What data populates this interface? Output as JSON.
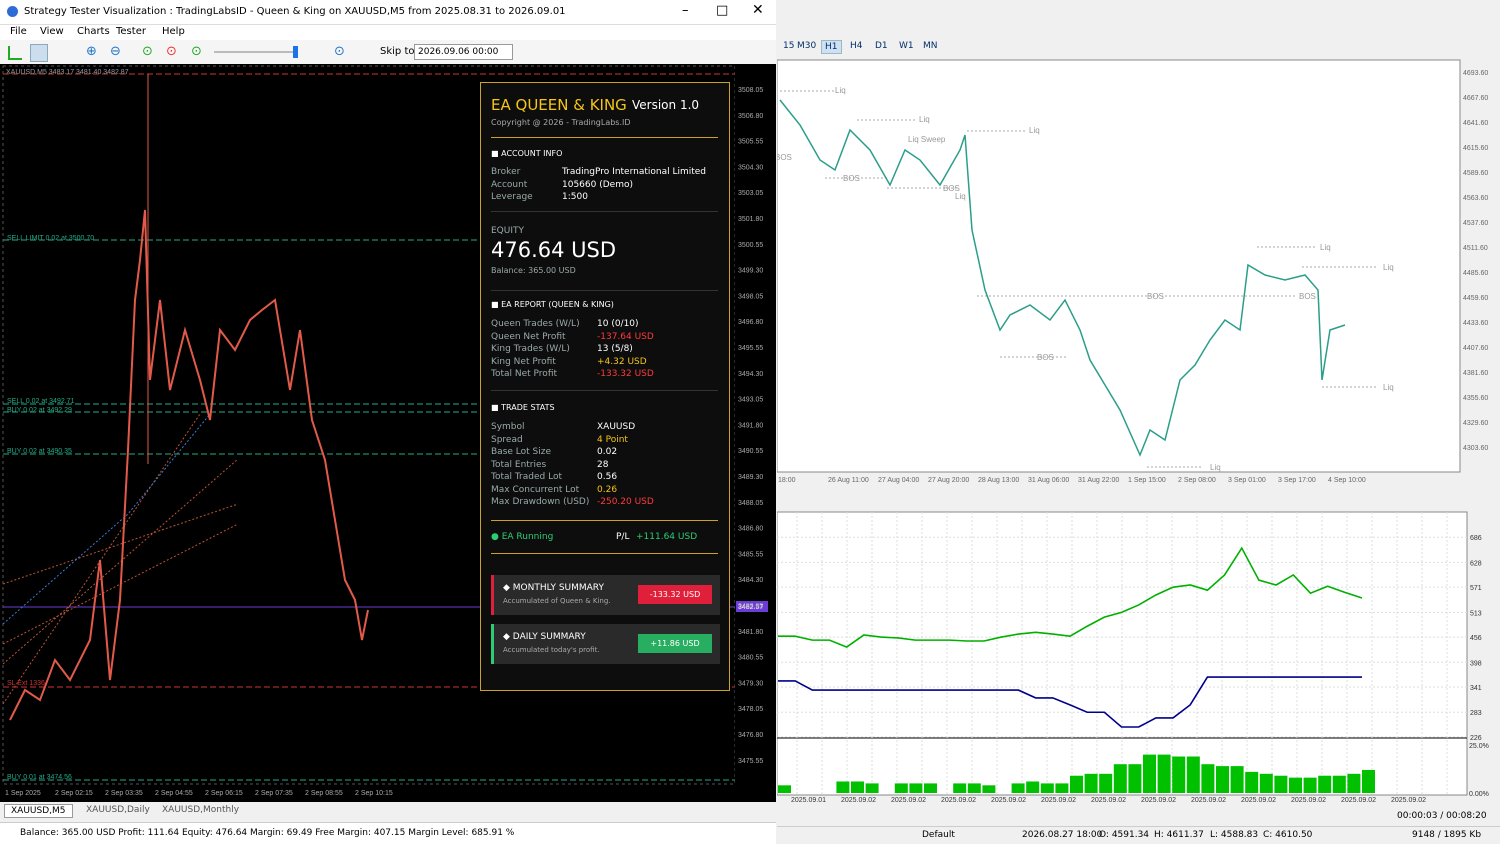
{
  "left_window": {
    "title": "Strategy Tester Visualization : TradingLabsID - Queen & King on XAUUSD,M5 from 2025.08.31 to 2026.09.01",
    "menu": [
      "File",
      "View",
      "Charts",
      "Tester",
      "Help"
    ],
    "skip_to": "Skip to",
    "date_field": "2026.09.06 00:00",
    "chart": {
      "symbol_info": "XAUUSD,M5 3483.17 3481.40 3482.87",
      "price_ticks": [
        "3508.05",
        "3506.80",
        "3505.55",
        "3504.30",
        "3503.05",
        "3501.80",
        "3500.55",
        "3499.30",
        "3498.05",
        "3496.80",
        "3495.55",
        "3494.30",
        "3493.05",
        "3491.80",
        "3490.55",
        "3489.30",
        "3488.05",
        "3486.80",
        "3485.55",
        "3484.30",
        "3483.05",
        "3481.80",
        "3480.55",
        "3479.30",
        "3478.05",
        "3476.80",
        "3475.55"
      ],
      "current_price": "3482.57",
      "time_ticks": [
        "1 Sep 2025",
        "2 Sep 02:15",
        "2 Sep 03:35",
        "2 Sep 04:55",
        "2 Sep 06:15",
        "2 Sep 07:35",
        "2 Sep 08:55",
        "2 Sep 10:15"
      ],
      "order_lines": [
        "SELL LIMIT 0.02 at 3500.70",
        "SELL 0.02 at 3492.71",
        "BUY 0.02 at 3492.29",
        "BUY 0.02 at 3490.35",
        "SL Ext 1336",
        "BUY 0.01 at 3474.56"
      ]
    },
    "panel": {
      "title": "EA QUEEN & KING",
      "version": "Version 1.0",
      "copyright": "Copyright @ 2026 - TradingLabs.ID",
      "account_title": "ACCOUNT INFO",
      "account_rows": [
        {
          "label": "Broker",
          "value": "TradingPro International Limited"
        },
        {
          "label": "Account",
          "value": "105660 (Demo)"
        },
        {
          "label": "Leverage",
          "value": "1:500"
        }
      ],
      "equity_label": "EQUITY",
      "equity": "476.64 USD",
      "balance": "Balance: 365.00 USD",
      "report_title": "EA REPORT (QUEEN & KING)",
      "report_rows": [
        {
          "label": "Queen Trades (W/L)",
          "value": "10 (0/10)"
        },
        {
          "label": "Queen Net Profit",
          "value": "-137.64 USD",
          "color": "#ff3b3b"
        },
        {
          "label": "King Trades (W/L)",
          "value": "13 (5/8)"
        },
        {
          "label": "King Net Profit",
          "value": "+4.32 USD",
          "color": "#f5c518"
        },
        {
          "label": "Total Net Profit",
          "value": "-133.32 USD",
          "color": "#ff3b3b"
        }
      ],
      "stats_title": "TRADE STATS",
      "stats_rows": [
        {
          "label": "Symbol",
          "value": "XAUUSD"
        },
        {
          "label": "Spread",
          "value": "4 Point",
          "color": "#f5c518"
        },
        {
          "label": "Base Lot Size",
          "value": "0.02"
        },
        {
          "label": "Total Entries",
          "value": "28"
        },
        {
          "label": "Total Traded Lot",
          "value": "0.56"
        },
        {
          "label": "Max Concurrent Lot",
          "value": "0.26",
          "color": "#f5c518"
        },
        {
          "label": "Max Drawdown (USD)",
          "value": "-250.20 USD",
          "color": "#ff3b3b"
        }
      ],
      "status": "EA Running",
      "pl_label": "P/L",
      "pl_value": "+111.64 USD",
      "monthly": {
        "title": "MONTHLY SUMMARY",
        "subtitle": "Accumulated of Queen & King.",
        "value": "-133.32 USD"
      },
      "daily": {
        "title": "DAILY SUMMARY",
        "subtitle": "Accumulated today's profit.",
        "value": "+11.86 USD"
      }
    },
    "tabs": [
      "XAUUSD,M5",
      "XAUUSD,Daily",
      "XAUUSD,Monthly"
    ],
    "status": "Balance: 365.00 USD  Profit: 111.64  Equity: 476.64  Margin: 69.49  Free Margin: 407.15  Margin Level: 685.91 %"
  },
  "right_window": {
    "timeframes": [
      "15",
      "M30",
      "H1",
      "H4",
      "D1",
      "W1",
      "MN"
    ],
    "price_chart": {
      "price_ticks": [
        "4693.60",
        "4667.60",
        "4641.60",
        "4615.60",
        "4589.60",
        "4563.60",
        "4537.60",
        "4511.60",
        "4485.60",
        "4459.60",
        "4433.60",
        "4407.60",
        "4381.60",
        "4355.60",
        "4329.60",
        "4303.60"
      ],
      "time_ticks": [
        "18:00",
        "26 Aug 11:00",
        "27 Aug 04:00",
        "27 Aug 20:00",
        "28 Aug 13:00",
        "31 Aug 06:00",
        "31 Aug 22:00",
        "1 Sep 15:00",
        "2 Sep 08:00",
        "3 Sep 01:00",
        "3 Sep 17:00",
        "4 Sep 10:00"
      ],
      "annotations": [
        "Liq",
        "Liq",
        "Liq",
        "Liq Sweep",
        "BOS",
        "BOS",
        "BOS",
        "Liq",
        "Liq",
        "Liq",
        "BOS",
        "BOS",
        "BOS",
        "Liq",
        "Liq"
      ]
    },
    "equity_chart": {
      "ylim": [
        226,
        744
      ],
      "yticks": [
        686,
        628,
        571,
        513,
        456,
        398,
        341,
        283,
        226
      ],
      "equity": {
        "color": "#00b000",
        "values": [
          458,
          458,
          449,
          449,
          433,
          461,
          456,
          454,
          449,
          449,
          449,
          447,
          447,
          456,
          463,
          467,
          463,
          458,
          481,
          502,
          513,
          530,
          553,
          571,
          576,
          564,
          599,
          661,
          587,
          576,
          599,
          557,
          573,
          559,
          546
        ]
      },
      "balance": {
        "color": "#00008b",
        "values": [
          355,
          355,
          334,
          334,
          334,
          334,
          334,
          334,
          334,
          334,
          334,
          334,
          334,
          334,
          334,
          316,
          316,
          300,
          283,
          283,
          249,
          249,
          270,
          270,
          300,
          364,
          364,
          364,
          364,
          364,
          364,
          364,
          364,
          364,
          364
        ]
      },
      "x_labels": [
        "2025.09.01",
        "2025.09.02",
        "2025.09.02",
        "2025.09.02",
        "2025.09.02",
        "2025.09.02",
        "2025.09.02",
        "2025.09.02",
        "2025.09.02",
        "2025.09.02",
        "2025.09.02",
        "2025.09.02",
        "2025.09.02"
      ]
    },
    "load_chart": {
      "ylim": [
        0,
        25
      ],
      "yticks": [
        {
          "value": 25,
          "label": "25.0%"
        },
        {
          "value": 0,
          "label": "0.00%"
        }
      ],
      "color": "#00c000",
      "values": [
        4,
        0,
        0,
        0,
        6,
        6,
        5,
        0,
        5,
        5,
        5,
        0,
        5,
        5,
        4,
        0,
        5,
        6,
        5,
        5,
        9,
        10,
        10,
        15,
        15,
        20,
        20,
        19,
        19,
        15,
        14,
        14,
        11,
        10,
        9,
        8,
        8,
        9,
        9,
        10,
        12
      ]
    },
    "progress": "00:00:03 / 00:08:20",
    "status": [
      "Default",
      "2026.08.27 18:00",
      "O: 4591.34",
      "H: 4611.37",
      "L: 4588.83",
      "C: 4610.50",
      "9148 / 1895 Kb"
    ]
  }
}
